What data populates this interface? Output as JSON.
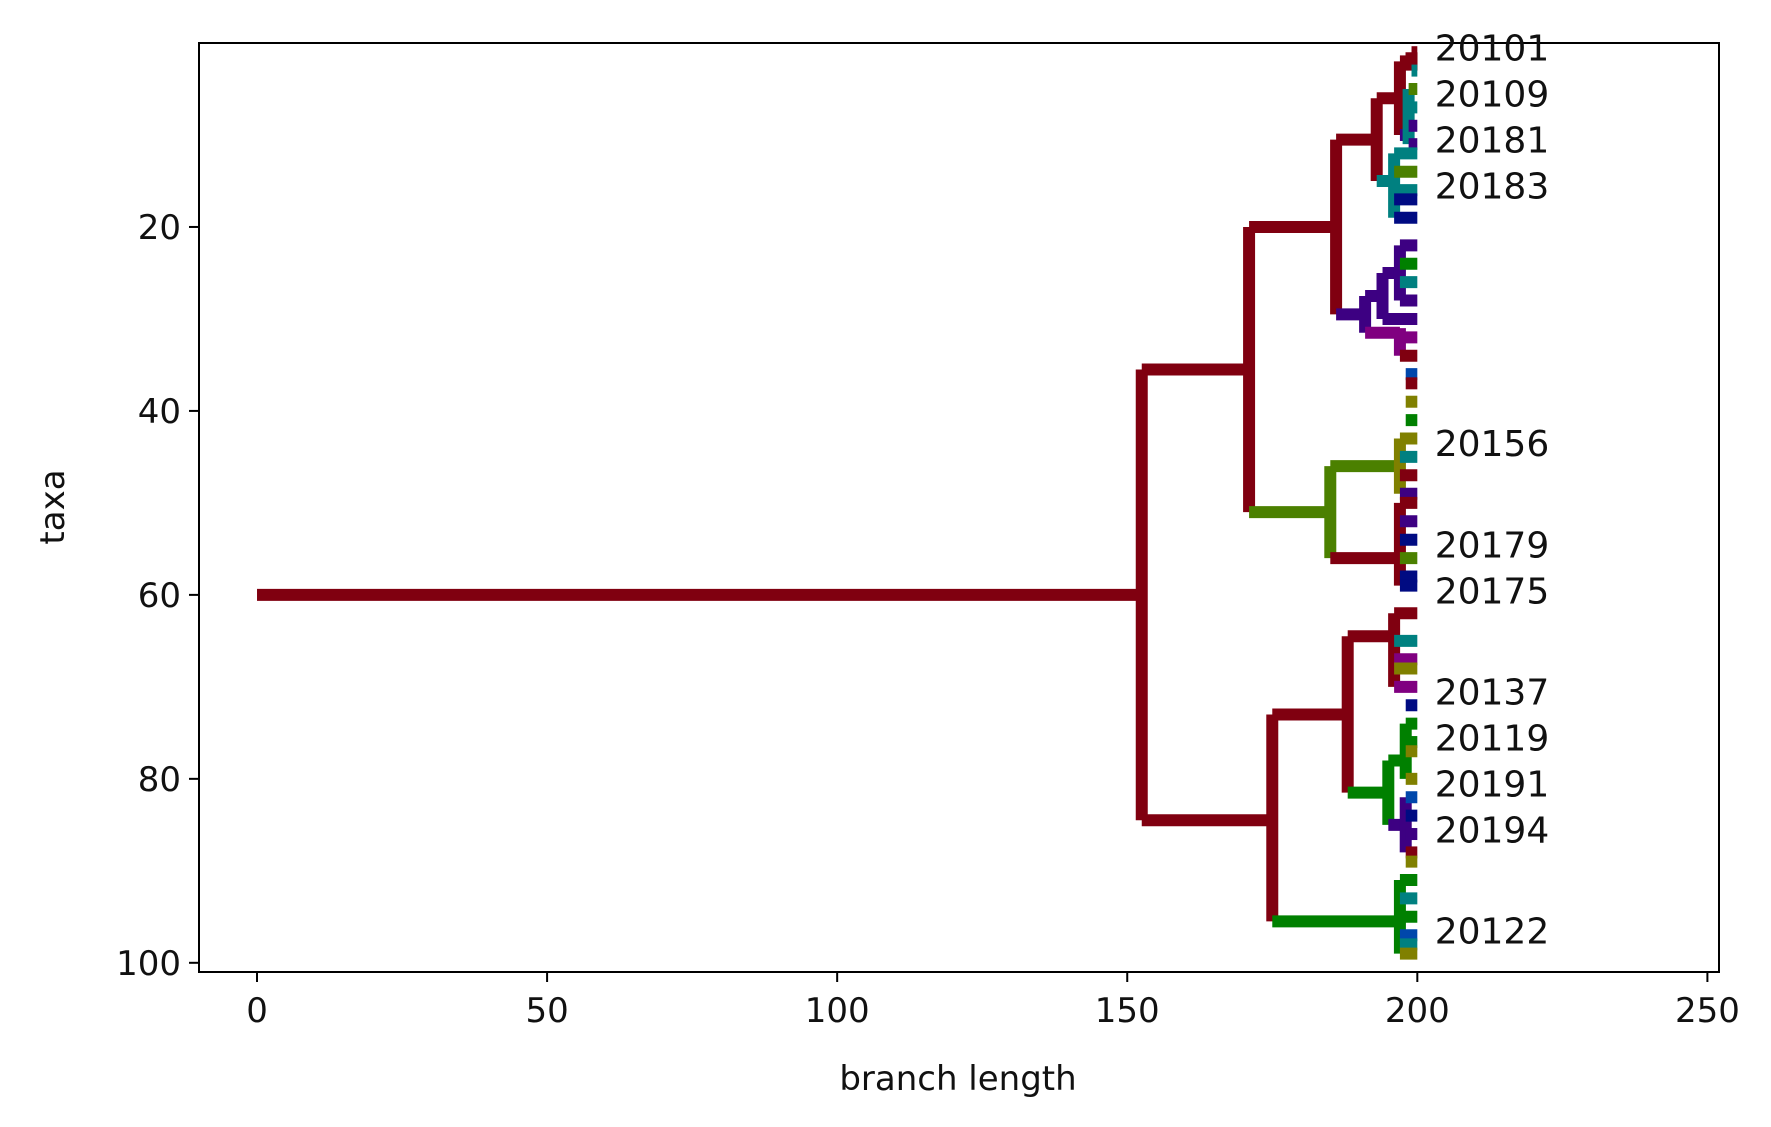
{
  "chart_data": {
    "type": "tree",
    "xlabel": "branch length",
    "ylabel": "taxa",
    "xlim": [
      -10,
      252
    ],
    "ylim": [
      101,
      0
    ],
    "xticks": [
      0,
      50,
      100,
      150,
      200,
      250
    ],
    "yticks": [
      20,
      40,
      60,
      80,
      100
    ],
    "grid": false,
    "colors": {
      "maroon": "#800010",
      "olive": "#4b8000",
      "green": "#008000",
      "purple": "#3d0082",
      "magenta": "#800080",
      "teal": "#008080",
      "navy": "#000b82",
      "khaki": "#808000",
      "blue": "#0047ab"
    },
    "branches": [
      {
        "x0": 0,
        "x1": 152.5,
        "y": 60,
        "color": "maroon"
      },
      {
        "x": 152.5,
        "y0": 35.5,
        "y1": 84.5,
        "color": "maroon"
      },
      {
        "x0": 152.5,
        "x1": 171,
        "y": 35.5,
        "color": "maroon"
      },
      {
        "x": 171,
        "y0": 20,
        "y1": 51,
        "color": "maroon"
      },
      {
        "x0": 171,
        "x1": 186,
        "y": 20,
        "color": "maroon"
      },
      {
        "x": 186,
        "y0": 10.5,
        "y1": 29.5,
        "color": "maroon"
      },
      {
        "x0": 186,
        "x1": 193,
        "y": 10.5,
        "color": "maroon"
      },
      {
        "x": 193,
        "y0": 6,
        "y1": 15,
        "color": "maroon"
      },
      {
        "x0": 193,
        "x1": 197,
        "y": 6,
        "color": "maroon"
      },
      {
        "x": 197,
        "y0": 2,
        "y1": 10,
        "color": "maroon"
      },
      {
        "x0": 197,
        "x1": 199,
        "y": 2,
        "color": "maroon"
      },
      {
        "x": 199,
        "y0": 1,
        "y1": 3,
        "color": "maroon"
      },
      {
        "x0": 199,
        "x1": 200,
        "y": 1,
        "color": "maroon"
      },
      {
        "x0": 199,
        "x1": 200,
        "y": 3,
        "color": "teal"
      },
      {
        "x0": 197,
        "x1": 198.5,
        "y": 10,
        "color": "purple"
      },
      {
        "x": 198.5,
        "y0": 5,
        "y1": 11,
        "color": "teal"
      },
      {
        "x0": 198.5,
        "x1": 200,
        "y": 5,
        "color": "olive"
      },
      {
        "x0": 198.5,
        "x1": 200,
        "y": 7,
        "color": "teal"
      },
      {
        "x0": 198.5,
        "x1": 200,
        "y": 9,
        "color": "purple"
      },
      {
        "x0": 198.5,
        "x1": 200,
        "y": 11,
        "color": "purple"
      },
      {
        "x0": 193,
        "x1": 196,
        "y": 15,
        "color": "teal"
      },
      {
        "x": 196,
        "y0": 12,
        "y1": 19,
        "color": "teal"
      },
      {
        "x0": 196,
        "x1": 200,
        "y": 12,
        "color": "teal"
      },
      {
        "x0": 196,
        "x1": 200,
        "y": 14,
        "color": "olive"
      },
      {
        "x0": 196,
        "x1": 200,
        "y": 16,
        "color": "teal"
      },
      {
        "x0": 196,
        "x1": 200,
        "y": 17,
        "color": "navy"
      },
      {
        "x0": 196,
        "x1": 200,
        "y": 19,
        "color": "navy"
      },
      {
        "x0": 186,
        "x1": 191,
        "y": 29.5,
        "color": "purple"
      },
      {
        "x": 191,
        "y0": 27.5,
        "y1": 31.5,
        "color": "purple"
      },
      {
        "x0": 191,
        "x1": 194,
        "y": 27.5,
        "color": "purple"
      },
      {
        "x": 194,
        "y0": 25,
        "y1": 30,
        "color": "purple"
      },
      {
        "x0": 194,
        "x1": 197,
        "y": 25,
        "color": "purple"
      },
      {
        "x": 197,
        "y0": 22,
        "y1": 28,
        "color": "purple"
      },
      {
        "x0": 197,
        "x1": 200,
        "y": 22,
        "color": "purple"
      },
      {
        "x0": 197,
        "x1": 200,
        "y": 24,
        "color": "green"
      },
      {
        "x0": 197,
        "x1": 200,
        "y": 26,
        "color": "teal"
      },
      {
        "x0": 197,
        "x1": 200,
        "y": 28,
        "color": "purple"
      },
      {
        "x0": 194,
        "x1": 200,
        "y": 30,
        "color": "purple"
      },
      {
        "x0": 191,
        "x1": 197,
        "y": 31.5,
        "color": "magenta"
      },
      {
        "x": 197,
        "y0": 31,
        "y1": 34,
        "color": "magenta"
      },
      {
        "x0": 197,
        "x1": 200,
        "y": 32,
        "color": "magenta"
      },
      {
        "x0": 197,
        "x1": 200,
        "y": 34,
        "color": "maroon"
      },
      {
        "x0": 198,
        "x1": 200,
        "y": 36,
        "color": "blue"
      },
      {
        "x0": 198,
        "x1": 200,
        "y": 37,
        "color": "maroon"
      },
      {
        "x0": 198,
        "x1": 200,
        "y": 39,
        "color": "khaki"
      },
      {
        "x0": 198,
        "x1": 200,
        "y": 41,
        "color": "green"
      },
      {
        "x0": 171,
        "x1": 185,
        "y": 51,
        "color": "olive"
      },
      {
        "x": 185,
        "y0": 46,
        "y1": 56,
        "color": "olive"
      },
      {
        "x0": 185,
        "x1": 197,
        "y": 46,
        "color": "olive"
      },
      {
        "x": 197,
        "y0": 43,
        "y1": 49,
        "color": "khaki"
      },
      {
        "x0": 197,
        "x1": 200,
        "y": 43,
        "color": "khaki"
      },
      {
        "x0": 197,
        "x1": 200,
        "y": 45,
        "color": "teal"
      },
      {
        "x0": 197,
        "x1": 200,
        "y": 47,
        "color": "maroon"
      },
      {
        "x0": 197,
        "x1": 200,
        "y": 49,
        "color": "purple"
      },
      {
        "x0": 185,
        "x1": 197,
        "y": 56,
        "color": "maroon"
      },
      {
        "x": 197,
        "y0": 50,
        "y1": 59,
        "color": "maroon"
      },
      {
        "x0": 197,
        "x1": 200,
        "y": 50,
        "color": "maroon"
      },
      {
        "x0": 197,
        "x1": 200,
        "y": 52,
        "color": "purple"
      },
      {
        "x0": 197,
        "x1": 200,
        "y": 54,
        "color": "navy"
      },
      {
        "x0": 197,
        "x1": 200,
        "y": 56,
        "color": "olive"
      },
      {
        "x0": 197,
        "x1": 200,
        "y": 58,
        "color": "navy"
      },
      {
        "x0": 197,
        "x1": 200,
        "y": 59,
        "color": "navy"
      },
      {
        "x0": 152.5,
        "x1": 175,
        "y": 84.5,
        "color": "maroon"
      },
      {
        "x": 175,
        "y0": 73,
        "y1": 95.5,
        "color": "maroon"
      },
      {
        "x0": 175,
        "x1": 188,
        "y": 73,
        "color": "maroon"
      },
      {
        "x": 188,
        "y0": 64.5,
        "y1": 81.5,
        "color": "maroon"
      },
      {
        "x0": 188,
        "x1": 196,
        "y": 64.5,
        "color": "maroon"
      },
      {
        "x": 196,
        "y0": 62,
        "y1": 70,
        "color": "maroon"
      },
      {
        "x0": 196,
        "x1": 200,
        "y": 62,
        "color": "maroon"
      },
      {
        "x0": 196,
        "x1": 200,
        "y": 65,
        "color": "teal"
      },
      {
        "x0": 196,
        "x1": 200,
        "y": 67,
        "color": "magenta"
      },
      {
        "x0": 196,
        "x1": 200,
        "y": 68,
        "color": "khaki"
      },
      {
        "x0": 196,
        "x1": 200,
        "y": 70,
        "color": "magenta"
      },
      {
        "x0": 198,
        "x1": 200,
        "y": 72,
        "color": "navy"
      },
      {
        "x0": 188,
        "x1": 195,
        "y": 81.5,
        "color": "green"
      },
      {
        "x": 195,
        "y0": 78,
        "y1": 85,
        "color": "green"
      },
      {
        "x0": 195,
        "x1": 198,
        "y": 78,
        "color": "green"
      },
      {
        "x": 198,
        "y0": 74,
        "y1": 80,
        "color": "green"
      },
      {
        "x0": 198,
        "x1": 200,
        "y": 74,
        "color": "green"
      },
      {
        "x0": 198,
        "x1": 200,
        "y": 76,
        "color": "green"
      },
      {
        "x0": 198,
        "x1": 200,
        "y": 77,
        "color": "khaki"
      },
      {
        "x0": 198,
        "x1": 200,
        "y": 80,
        "color": "khaki"
      },
      {
        "x0": 195,
        "x1": 198,
        "y": 85,
        "color": "purple"
      },
      {
        "x": 198,
        "y0": 82,
        "y1": 88,
        "color": "purple"
      },
      {
        "x0": 198,
        "x1": 200,
        "y": 82,
        "color": "blue"
      },
      {
        "x0": 198,
        "x1": 200,
        "y": 84,
        "color": "navy"
      },
      {
        "x0": 198,
        "x1": 200,
        "y": 86,
        "color": "purple"
      },
      {
        "x0": 198,
        "x1": 200,
        "y": 88,
        "color": "maroon"
      },
      {
        "x0": 198,
        "x1": 200,
        "y": 89,
        "color": "khaki"
      },
      {
        "x0": 175,
        "x1": 197,
        "y": 95.5,
        "color": "green"
      },
      {
        "x": 197,
        "y0": 91,
        "y1": 99,
        "color": "green"
      },
      {
        "x0": 197,
        "x1": 200,
        "y": 91,
        "color": "green"
      },
      {
        "x0": 197,
        "x1": 200,
        "y": 93,
        "color": "teal"
      },
      {
        "x0": 197,
        "x1": 200,
        "y": 95,
        "color": "green"
      },
      {
        "x0": 197,
        "x1": 200,
        "y": 97,
        "color": "blue"
      },
      {
        "x0": 197,
        "x1": 200,
        "y": 98,
        "color": "teal"
      },
      {
        "x0": 197,
        "x1": 200,
        "y": 99,
        "color": "khaki"
      }
    ],
    "labels": [
      {
        "text": "20101",
        "x": 203,
        "y": 0.5
      },
      {
        "text": "20109",
        "x": 203,
        "y": 5.5
      },
      {
        "text": "20181",
        "x": 203,
        "y": 10.5
      },
      {
        "text": "20183",
        "x": 203,
        "y": 15.5
      },
      {
        "text": "20156",
        "x": 203,
        "y": 43.5
      },
      {
        "text": "20179",
        "x": 203,
        "y": 54.5
      },
      {
        "text": "20175",
        "x": 203,
        "y": 59.5
      },
      {
        "text": "20137",
        "x": 203,
        "y": 70.5
      },
      {
        "text": "20119",
        "x": 203,
        "y": 75.5
      },
      {
        "text": "20191",
        "x": 203,
        "y": 80.5
      },
      {
        "text": "20194",
        "x": 203,
        "y": 85.5
      },
      {
        "text": "20122",
        "x": 203,
        "y": 96.5
      }
    ]
  }
}
